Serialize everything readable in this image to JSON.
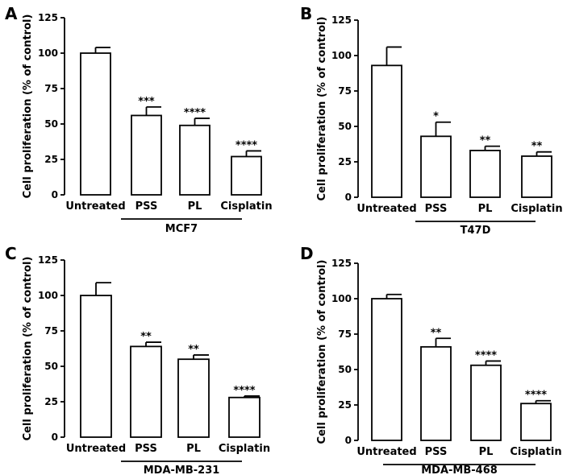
{
  "chart_data": [
    {
      "type": "bar",
      "panel": "A",
      "group_label": "MCF7",
      "categories": [
        "Untreated",
        "PSS",
        "PL",
        "Cisplatin"
      ],
      "values": [
        100,
        56,
        49,
        27
      ],
      "errors": [
        4,
        6,
        5,
        4
      ],
      "significance": [
        "",
        "***",
        "****",
        "****"
      ],
      "ylabel": "Cell proliferation (% of control)",
      "ylim": [
        0,
        125
      ],
      "yticks": [
        "0",
        "25",
        "50",
        "75",
        "100",
        "125"
      ]
    },
    {
      "type": "bar",
      "panel": "B",
      "group_label": "T47D",
      "categories": [
        "Untreated",
        "PSS",
        "PL",
        "Cisplatin"
      ],
      "values": [
        93,
        43,
        33,
        29
      ],
      "errors": [
        13,
        10,
        3,
        3
      ],
      "significance": [
        "",
        "*",
        "**",
        "**"
      ],
      "ylabel": "Cell proliferation (% of control)",
      "ylim": [
        0,
        125
      ],
      "yticks": [
        "0",
        "25",
        "50",
        "75",
        "100",
        "125"
      ]
    },
    {
      "type": "bar",
      "panel": "C",
      "group_label": "MDA-MB-231",
      "categories": [
        "Untreated",
        "PSS",
        "PL",
        "Cisplatin"
      ],
      "values": [
        100,
        64,
        55,
        28
      ],
      "errors": [
        9,
        3,
        3,
        1
      ],
      "significance": [
        "",
        "**",
        "**",
        "****"
      ],
      "ylabel": "Cell proliferation (% of control)",
      "ylim": [
        0,
        125
      ],
      "yticks": [
        "0",
        "25",
        "50",
        "75",
        "100",
        "125"
      ]
    },
    {
      "type": "bar",
      "panel": "D",
      "group_label": "MDA-MB-468",
      "categories": [
        "Untreated",
        "PSS",
        "PL",
        "Cisplatin"
      ],
      "values": [
        100,
        66,
        53,
        26
      ],
      "errors": [
        3,
        6,
        3,
        2
      ],
      "significance": [
        "",
        "**",
        "****",
        "****"
      ],
      "ylabel": "Cell proliferation (% of control)",
      "ylim": [
        0,
        125
      ],
      "yticks": [
        "0",
        "25",
        "50",
        "75",
        "100",
        "125"
      ]
    }
  ]
}
